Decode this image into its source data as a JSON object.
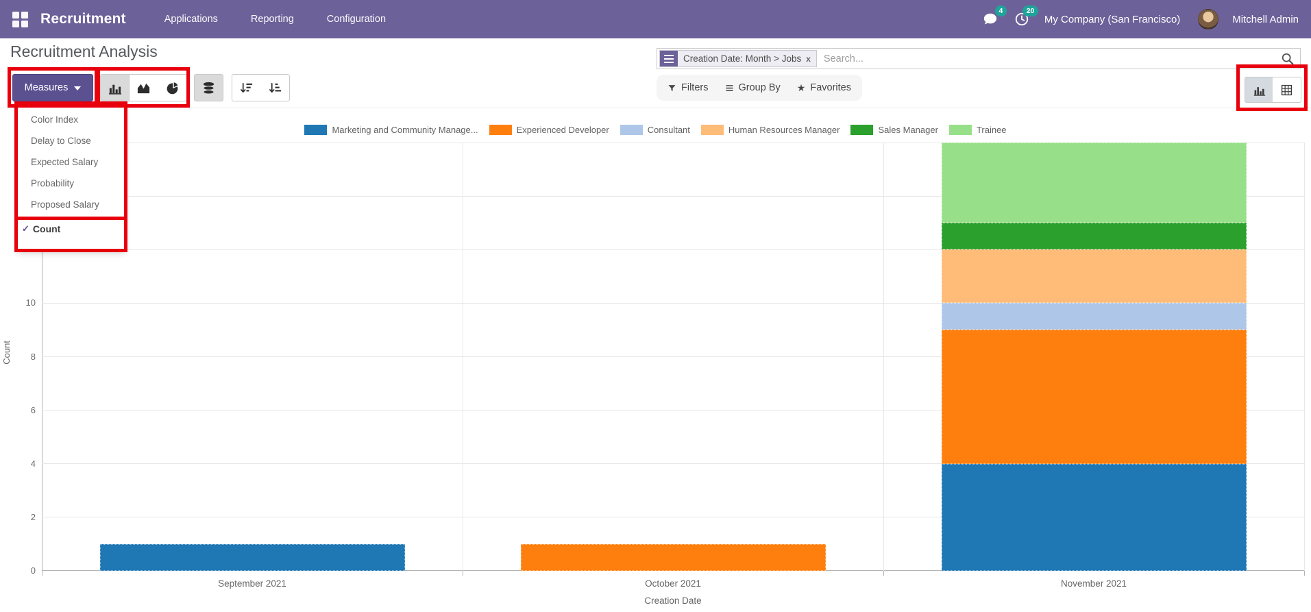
{
  "navbar": {
    "app_name": "Recruitment",
    "menus": [
      {
        "label": "Applications"
      },
      {
        "label": "Reporting"
      },
      {
        "label": "Configuration"
      }
    ],
    "messages_badge": "4",
    "activities_badge": "20",
    "company": "My Company (San Francisco)",
    "user": "Mitchell Admin"
  },
  "header": {
    "title": "Recruitment Analysis",
    "search": {
      "facet_label": "Creation Date: Month > Jobs",
      "facet_close": "x",
      "placeholder": "Search..."
    }
  },
  "toolbar": {
    "measures_label": "Measures",
    "filters_label": "Filters",
    "groupby_label": "Group By",
    "favorites_label": "Favorites",
    "favorites_star": "★"
  },
  "measures_menu": {
    "items": [
      "Color Index",
      "Delay to Close",
      "Expected Salary",
      "Probability",
      "Proposed Salary"
    ],
    "checked_item": "Count",
    "check_glyph": "✓"
  },
  "annotation": {
    "highlight_color": "#e8000d"
  },
  "chart_data": {
    "type": "bar",
    "stacked": true,
    "title": "",
    "xlabel": "Creation Date",
    "ylabel": "Count",
    "categories": [
      "September 2021",
      "October 2021",
      "November 2021"
    ],
    "series": [
      {
        "name": "Marketing and Community Manage...",
        "color": "#1f77b4",
        "values": [
          1,
          0,
          4
        ]
      },
      {
        "name": "Experienced Developer",
        "color": "#ff7f0e",
        "values": [
          0,
          1,
          5
        ]
      },
      {
        "name": "Consultant",
        "color": "#aec7e8",
        "values": [
          0,
          0,
          1
        ]
      },
      {
        "name": "Human Resources Manager",
        "color": "#ffbb78",
        "values": [
          0,
          0,
          2
        ]
      },
      {
        "name": "Sales Manager",
        "color": "#2ca02c",
        "values": [
          0,
          0,
          1
        ]
      },
      {
        "name": "Trainee",
        "color": "#98df8a",
        "values": [
          0,
          0,
          3
        ]
      }
    ],
    "ylim": [
      0,
      16
    ],
    "ytick_step": 2,
    "grid": true,
    "legend_position": "top"
  }
}
